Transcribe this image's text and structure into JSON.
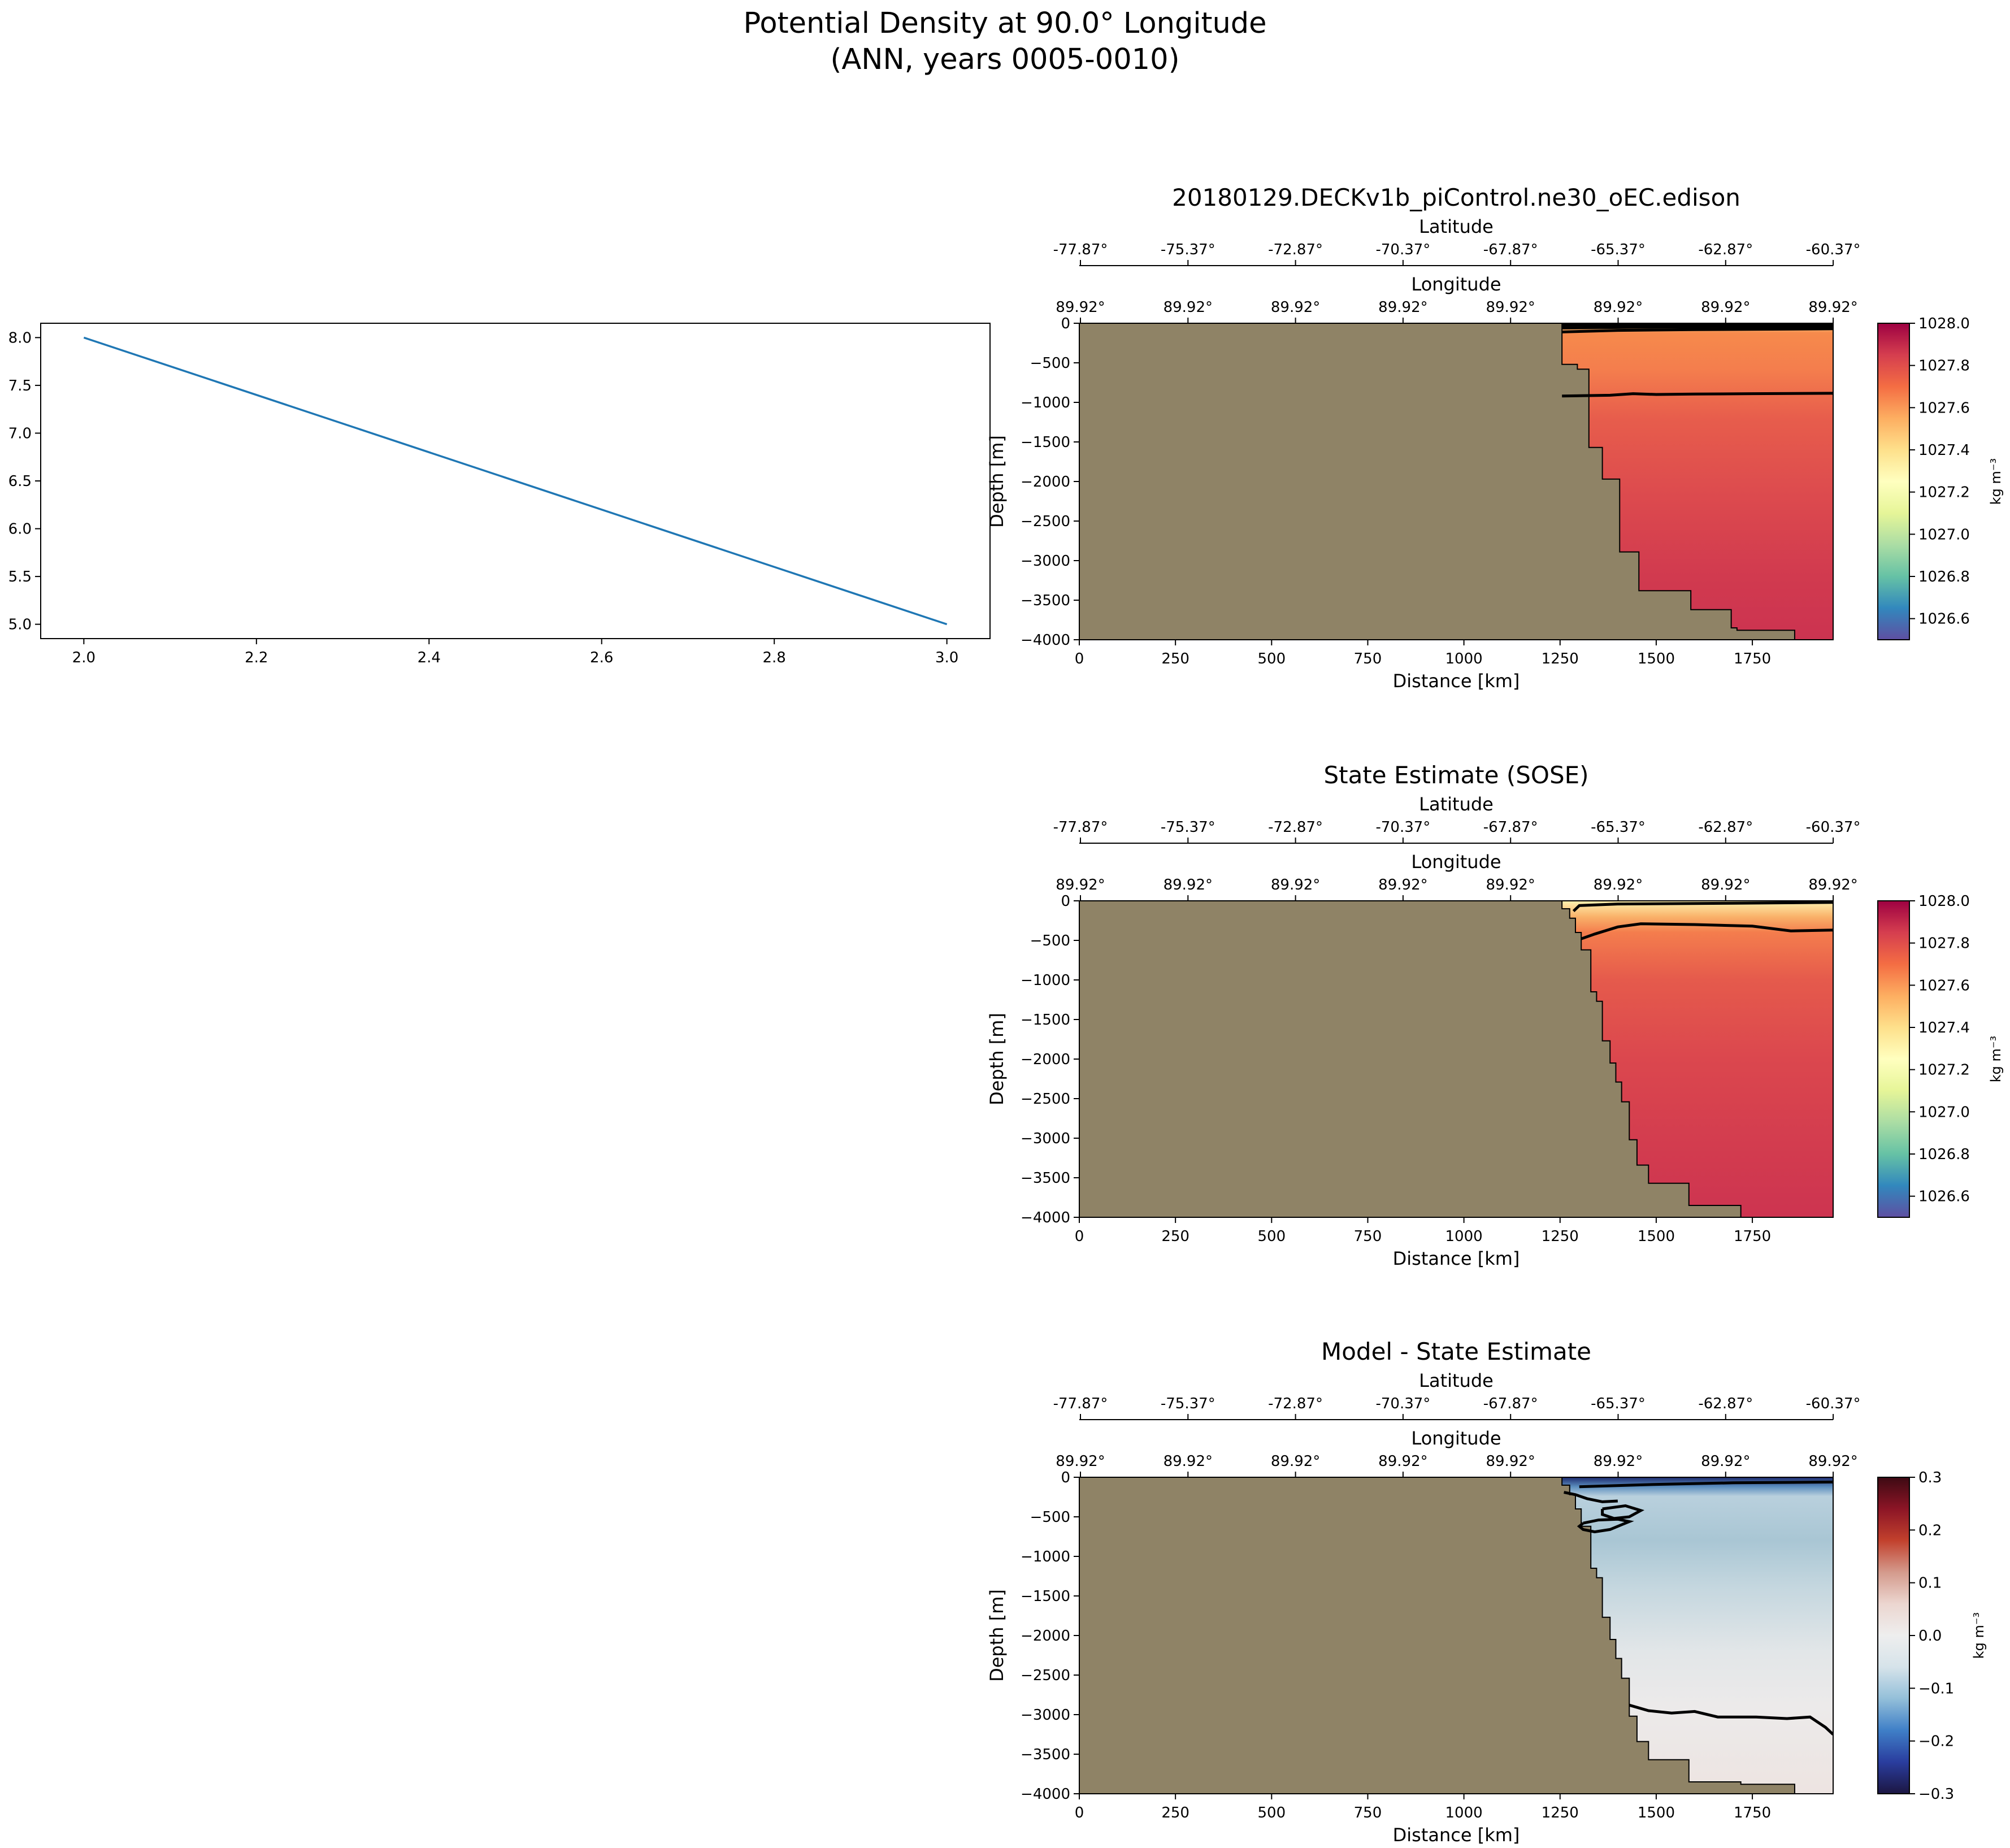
{
  "figure": {
    "title_line1": "Potential Density at 90.0° Longitude",
    "title_line2": "(ANN, years 0005-0010)"
  },
  "colors": {
    "land": "#8f8366",
    "line_series": "#1f77b4",
    "density_cmap": [
      "#5e4fa2",
      "#3288bd",
      "#66c2a5",
      "#abdda4",
      "#e6f598",
      "#ffffbf",
      "#fee08b",
      "#fdae61",
      "#f46d43",
      "#d53e4f",
      "#9e0142"
    ],
    "diff_cmap": [
      "#1c1642",
      "#2a3d9e",
      "#3f7fc7",
      "#93bfd9",
      "#d6e3ea",
      "#eeeeee",
      "#ecd6d0",
      "#d49a8c",
      "#c2412d",
      "#8c1526",
      "#3d0a13"
    ]
  },
  "chart_data": [
    {
      "type": "line",
      "title": "",
      "x": [
        2.0,
        3.0
      ],
      "series": [
        {
          "values": [
            8.0,
            5.0
          ]
        }
      ],
      "xlim": [
        1.95,
        3.05
      ],
      "ylim": [
        4.85,
        8.15
      ],
      "xticks": [
        "2.0",
        "2.2",
        "2.4",
        "2.6",
        "2.8",
        "3.0"
      ],
      "yticks": [
        "5.0",
        "5.5",
        "6.0",
        "6.5",
        "7.0",
        "7.5",
        "8.0"
      ]
    },
    {
      "type": "heatmap",
      "title": "20180129.DECKv1b_piControl.ne30_oEC.edison",
      "xlabel": "Distance [km]",
      "ylabel": "Depth [m]",
      "xlim": [
        0,
        1960
      ],
      "ylim": [
        -4000,
        0
      ],
      "xticks": [
        "0",
        "250",
        "500",
        "750",
        "1000",
        "1250",
        "1500",
        "1750"
      ],
      "yticks": [
        "0",
        "−500",
        "−1000",
        "−1500",
        "−2000",
        "−2500",
        "−3000",
        "−3500",
        "−4000"
      ],
      "top_axis_1": {
        "label": "Latitude",
        "ticks": [
          "-77.87°",
          "-75.37°",
          "-72.87°",
          "-70.37°",
          "-67.87°",
          "-65.37°",
          "-62.87°",
          "-60.37°"
        ]
      },
      "top_axis_2": {
        "label": "Longitude",
        "ticks": [
          "89.92°",
          "89.92°",
          "89.92°",
          "89.92°",
          "89.92°",
          "89.92°",
          "89.92°",
          "89.92°"
        ]
      },
      "colorbar": {
        "label": "kg m⁻³",
        "range": [
          1026.5,
          1028.0
        ],
        "ticks": [
          "1028.0",
          "1027.8",
          "1027.6",
          "1027.4",
          "1027.2",
          "1027.0",
          "1026.8",
          "1026.6"
        ]
      },
      "bathymetry": [
        [
          1255,
          0
        ],
        [
          1255,
          -520
        ],
        [
          1295,
          -520
        ],
        [
          1295,
          -580
        ],
        [
          1325,
          -580
        ],
        [
          1325,
          -1570
        ],
        [
          1360,
          -1570
        ],
        [
          1360,
          -1970
        ],
        [
          1405,
          -1970
        ],
        [
          1405,
          -2890
        ],
        [
          1455,
          -2890
        ],
        [
          1455,
          -3380
        ],
        [
          1590,
          -3380
        ],
        [
          1590,
          -3620
        ],
        [
          1695,
          -3620
        ],
        [
          1695,
          -3850
        ],
        [
          1710,
          -3850
        ],
        [
          1710,
          -3880
        ],
        [
          1860,
          -3880
        ],
        [
          1860,
          -4000
        ]
      ],
      "contours": [
        [
          [
            1255,
            -920
          ],
          [
            1380,
            -910
          ],
          [
            1440,
            -890
          ],
          [
            1500,
            -900
          ],
          [
            1600,
            -895
          ],
          [
            1750,
            -890
          ],
          [
            1960,
            -885
          ]
        ],
        [
          [
            1255,
            -110
          ],
          [
            1400,
            -90
          ],
          [
            1600,
            -80
          ],
          [
            1800,
            -75
          ],
          [
            1960,
            -70
          ]
        ],
        [
          [
            1255,
            -60
          ],
          [
            1450,
            -50
          ],
          [
            1700,
            -45
          ],
          [
            1960,
            -40
          ]
        ],
        [
          [
            1255,
            -25
          ],
          [
            1600,
            -20
          ],
          [
            1960,
            -15
          ]
        ]
      ]
    },
    {
      "type": "heatmap",
      "title": "State Estimate (SOSE)",
      "xlabel": "Distance [km]",
      "ylabel": "Depth [m]",
      "xlim": [
        0,
        1960
      ],
      "ylim": [
        -4000,
        0
      ],
      "xticks": [
        "0",
        "250",
        "500",
        "750",
        "1000",
        "1250",
        "1500",
        "1750"
      ],
      "yticks": [
        "0",
        "−500",
        "−1000",
        "−1500",
        "−2000",
        "−2500",
        "−3000",
        "−3500",
        "−4000"
      ],
      "top_axis_1": {
        "label": "Latitude",
        "ticks": [
          "-77.87°",
          "-75.37°",
          "-72.87°",
          "-70.37°",
          "-67.87°",
          "-65.37°",
          "-62.87°",
          "-60.37°"
        ]
      },
      "top_axis_2": {
        "label": "Longitude",
        "ticks": [
          "89.92°",
          "89.92°",
          "89.92°",
          "89.92°",
          "89.92°",
          "89.92°",
          "89.92°",
          "89.92°"
        ]
      },
      "colorbar": {
        "label": "kg m⁻³",
        "range": [
          1026.5,
          1028.0
        ],
        "ticks": [
          "1028.0",
          "1027.8",
          "1027.6",
          "1027.4",
          "1027.2",
          "1027.0",
          "1026.8",
          "1026.6"
        ]
      },
      "bathymetry": [
        [
          1255,
          0
        ],
        [
          1255,
          -100
        ],
        [
          1275,
          -100
        ],
        [
          1275,
          -220
        ],
        [
          1290,
          -220
        ],
        [
          1290,
          -400
        ],
        [
          1305,
          -400
        ],
        [
          1305,
          -620
        ],
        [
          1330,
          -620
        ],
        [
          1330,
          -1150
        ],
        [
          1345,
          -1150
        ],
        [
          1345,
          -1270
        ],
        [
          1360,
          -1270
        ],
        [
          1360,
          -1770
        ],
        [
          1380,
          -1770
        ],
        [
          1380,
          -2050
        ],
        [
          1395,
          -2050
        ],
        [
          1395,
          -2290
        ],
        [
          1410,
          -2290
        ],
        [
          1410,
          -2540
        ],
        [
          1430,
          -2540
        ],
        [
          1430,
          -3020
        ],
        [
          1450,
          -3020
        ],
        [
          1450,
          -3340
        ],
        [
          1480,
          -3340
        ],
        [
          1480,
          -3570
        ],
        [
          1585,
          -3570
        ],
        [
          1585,
          -3850
        ],
        [
          1720,
          -3850
        ],
        [
          1720,
          -4000
        ]
      ],
      "contours": [
        [
          [
            1305,
            -480
          ],
          [
            1340,
            -420
          ],
          [
            1400,
            -330
          ],
          [
            1460,
            -290
          ],
          [
            1600,
            -300
          ],
          [
            1750,
            -320
          ],
          [
            1850,
            -380
          ],
          [
            1960,
            -370
          ]
        ],
        [
          [
            1285,
            -130
          ],
          [
            1300,
            -60
          ],
          [
            1400,
            -40
          ],
          [
            1700,
            -30
          ],
          [
            1960,
            -20
          ]
        ]
      ]
    },
    {
      "type": "heatmap",
      "title": "Model - State Estimate",
      "xlabel": "Distance [km]",
      "ylabel": "Depth [m]",
      "xlim": [
        0,
        1960
      ],
      "ylim": [
        -4000,
        0
      ],
      "xticks": [
        "0",
        "250",
        "500",
        "750",
        "1000",
        "1250",
        "1500",
        "1750"
      ],
      "yticks": [
        "0",
        "−500",
        "−1000",
        "−1500",
        "−2000",
        "−2500",
        "−3000",
        "−3500",
        "−4000"
      ],
      "top_axis_1": {
        "label": "Latitude",
        "ticks": [
          "-77.87°",
          "-75.37°",
          "-72.87°",
          "-70.37°",
          "-67.87°",
          "-65.37°",
          "-62.87°",
          "-60.37°"
        ]
      },
      "top_axis_2": {
        "label": "Longitude",
        "ticks": [
          "89.92°",
          "89.92°",
          "89.92°",
          "89.92°",
          "89.92°",
          "89.92°",
          "89.92°",
          "89.92°"
        ]
      },
      "colorbar": {
        "label": "kg m⁻³",
        "range": [
          -0.3,
          0.3
        ],
        "ticks": [
          "0.3",
          "0.2",
          "0.1",
          "0.0",
          "−0.1",
          "−0.2",
          "−0.3"
        ]
      },
      "bathymetry": [
        [
          1255,
          0
        ],
        [
          1255,
          -100
        ],
        [
          1275,
          -100
        ],
        [
          1275,
          -220
        ],
        [
          1290,
          -220
        ],
        [
          1290,
          -400
        ],
        [
          1305,
          -400
        ],
        [
          1305,
          -620
        ],
        [
          1330,
          -620
        ],
        [
          1330,
          -1150
        ],
        [
          1345,
          -1150
        ],
        [
          1345,
          -1270
        ],
        [
          1360,
          -1270
        ],
        [
          1360,
          -1770
        ],
        [
          1380,
          -1770
        ],
        [
          1380,
          -2050
        ],
        [
          1395,
          -2050
        ],
        [
          1395,
          -2290
        ],
        [
          1410,
          -2290
        ],
        [
          1410,
          -2540
        ],
        [
          1430,
          -2540
        ],
        [
          1430,
          -3020
        ],
        [
          1450,
          -3020
        ],
        [
          1450,
          -3340
        ],
        [
          1480,
          -3340
        ],
        [
          1480,
          -3570
        ],
        [
          1585,
          -3570
        ],
        [
          1585,
          -3850
        ],
        [
          1720,
          -3850
        ],
        [
          1720,
          -3880
        ],
        [
          1860,
          -3880
        ],
        [
          1860,
          -4000
        ]
      ],
      "contours": [
        [
          [
            1430,
            -2880
          ],
          [
            1480,
            -2950
          ],
          [
            1540,
            -2980
          ],
          [
            1600,
            -2960
          ],
          [
            1660,
            -3030
          ],
          [
            1760,
            -3030
          ],
          [
            1840,
            -3050
          ],
          [
            1900,
            -3030
          ],
          [
            1940,
            -3160
          ],
          [
            1960,
            -3250
          ]
        ],
        [
          [
            1310,
            -580
          ],
          [
            1350,
            -540
          ],
          [
            1400,
            -530
          ],
          [
            1430,
            -560
          ],
          [
            1410,
            -600
          ],
          [
            1380,
            -660
          ],
          [
            1340,
            -690
          ],
          [
            1310,
            -660
          ],
          [
            1300,
            -620
          ],
          [
            1310,
            -580
          ]
        ],
        [
          [
            1360,
            -400
          ],
          [
            1420,
            -360
          ],
          [
            1460,
            -420
          ],
          [
            1430,
            -500
          ],
          [
            1390,
            -520
          ],
          [
            1360,
            -470
          ],
          [
            1360,
            -400
          ]
        ],
        [
          [
            1260,
            -190
          ],
          [
            1290,
            -220
          ],
          [
            1320,
            -270
          ],
          [
            1360,
            -310
          ],
          [
            1400,
            -300
          ]
        ],
        [
          [
            1300,
            -120
          ],
          [
            1500,
            -90
          ],
          [
            1700,
            -70
          ],
          [
            1960,
            -60
          ]
        ]
      ]
    }
  ]
}
